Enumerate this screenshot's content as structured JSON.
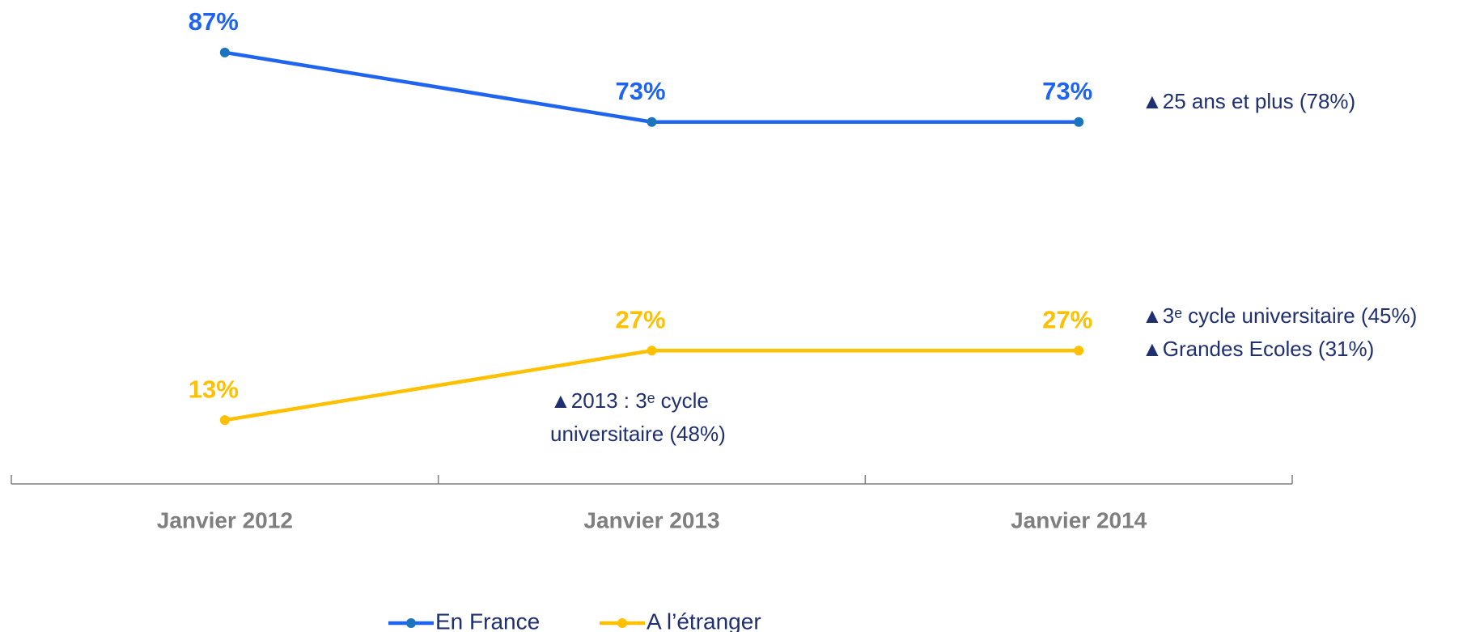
{
  "chart_data": {
    "type": "line",
    "categories": [
      "Janvier 2012",
      "Janvier 2013",
      "Janvier 2014"
    ],
    "series": [
      {
        "name": "En France",
        "color": "#1f64f0",
        "marker_color": "#1a75bc",
        "values": [
          87,
          73,
          73
        ],
        "value_labels": [
          "87%",
          "73%",
          "73%"
        ]
      },
      {
        "name": "A l’étranger",
        "color": "#ffc000",
        "marker_color": "#ffc000",
        "values": [
          13,
          27,
          27
        ],
        "value_labels": [
          "13%",
          "27%",
          "27%"
        ]
      }
    ],
    "ylim": [
      0,
      100
    ],
    "annotations": [
      {
        "lines": [
          "▲25 ans et plus (78%)"
        ]
      },
      {
        "lines": [
          "▲3ᵉ cycle universitaire (45%)",
          "▲Grandes Ecoles (31%)"
        ]
      },
      {
        "lines": [
          "▲2013 : 3ᵉ cycle",
          "universitaire (48%)"
        ]
      }
    ],
    "legend": "bottom"
  }
}
